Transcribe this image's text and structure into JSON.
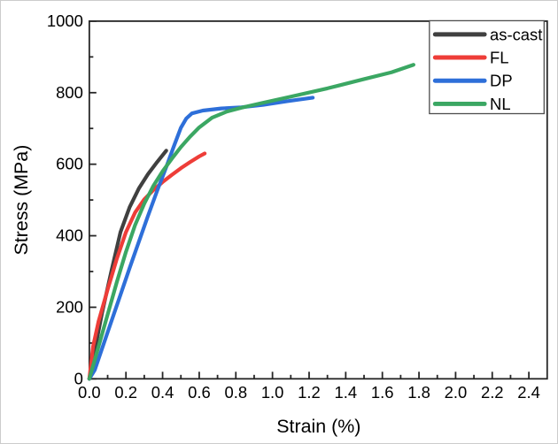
{
  "window": {
    "background": "#ffffff",
    "border_color": "#cccccc"
  },
  "chart_data": {
    "type": "line",
    "title": "",
    "xlabel": "Strain (%)",
    "ylabel": "Stress (MPa)",
    "xlim": [
      0,
      2.5
    ],
    "ylim": [
      0,
      1000
    ],
    "grid": false,
    "legend_position": "top-right",
    "axis_color": "#262626",
    "text_color": "#000000",
    "x_tick_values": [
      0.0,
      0.2,
      0.4,
      0.6,
      0.8,
      1.0,
      1.2,
      1.4,
      1.6,
      1.8,
      2.0,
      2.2,
      2.4
    ],
    "x_tick_labels": [
      "0.0",
      "0.2",
      "0.4",
      "0.6",
      "0.8",
      "1.0",
      "1.2",
      "1.4",
      "1.6",
      "1.8",
      "2.0",
      "2.2",
      "2.4"
    ],
    "x_minor_step": 0.1,
    "y_tick_values": [
      0,
      200,
      400,
      600,
      800,
      1000
    ],
    "y_tick_labels": [
      "0",
      "200",
      "400",
      "600",
      "800",
      "1000"
    ],
    "y_minor_step": 100,
    "legend": {
      "border_color": "#4d4d4d",
      "background": "#ffffff"
    },
    "series": [
      {
        "name": "as-cast",
        "color": "#404040",
        "points": [
          [
            0,
            0
          ],
          [
            0.03,
            80
          ],
          [
            0.07,
            185
          ],
          [
            0.12,
            300
          ],
          [
            0.17,
            410
          ],
          [
            0.22,
            480
          ],
          [
            0.27,
            532
          ],
          [
            0.32,
            572
          ],
          [
            0.37,
            606
          ],
          [
            0.4,
            625
          ],
          [
            0.42,
            638
          ]
        ]
      },
      {
        "name": "FL",
        "color": "#ee3d38",
        "points": [
          [
            0,
            0
          ],
          [
            0.02,
            90
          ],
          [
            0.05,
            160
          ],
          [
            0.1,
            250
          ],
          [
            0.15,
            335
          ],
          [
            0.2,
            410
          ],
          [
            0.25,
            465
          ],
          [
            0.3,
            502
          ],
          [
            0.35,
            528
          ],
          [
            0.4,
            550
          ],
          [
            0.45,
            570
          ],
          [
            0.5,
            589
          ],
          [
            0.55,
            606
          ],
          [
            0.6,
            622
          ],
          [
            0.63,
            630
          ]
        ]
      },
      {
        "name": "DP",
        "color": "#2e6fd9",
        "points": [
          [
            0,
            0
          ],
          [
            0.03,
            25
          ],
          [
            0.07,
            85
          ],
          [
            0.12,
            160
          ],
          [
            0.17,
            235
          ],
          [
            0.22,
            310
          ],
          [
            0.27,
            383
          ],
          [
            0.32,
            455
          ],
          [
            0.37,
            525
          ],
          [
            0.42,
            592
          ],
          [
            0.46,
            648
          ],
          [
            0.5,
            702
          ],
          [
            0.53,
            728
          ],
          [
            0.56,
            742
          ],
          [
            0.62,
            750
          ],
          [
            0.72,
            756
          ],
          [
            0.83,
            759
          ],
          [
            0.95,
            766
          ],
          [
            1.08,
            776
          ],
          [
            1.22,
            786
          ]
        ]
      },
      {
        "name": "NL",
        "color": "#3ba763",
        "points": [
          [
            0,
            0
          ],
          [
            0.05,
            90
          ],
          [
            0.1,
            180
          ],
          [
            0.15,
            270
          ],
          [
            0.2,
            355
          ],
          [
            0.25,
            430
          ],
          [
            0.3,
            490
          ],
          [
            0.35,
            540
          ],
          [
            0.4,
            580
          ],
          [
            0.45,
            615
          ],
          [
            0.5,
            648
          ],
          [
            0.55,
            677
          ],
          [
            0.6,
            703
          ],
          [
            0.67,
            730
          ],
          [
            0.75,
            747
          ],
          [
            0.83,
            758
          ],
          [
            0.95,
            772
          ],
          [
            1.1,
            789
          ],
          [
            1.3,
            812
          ],
          [
            1.5,
            838
          ],
          [
            1.65,
            857
          ],
          [
            1.77,
            878
          ]
        ]
      }
    ]
  }
}
